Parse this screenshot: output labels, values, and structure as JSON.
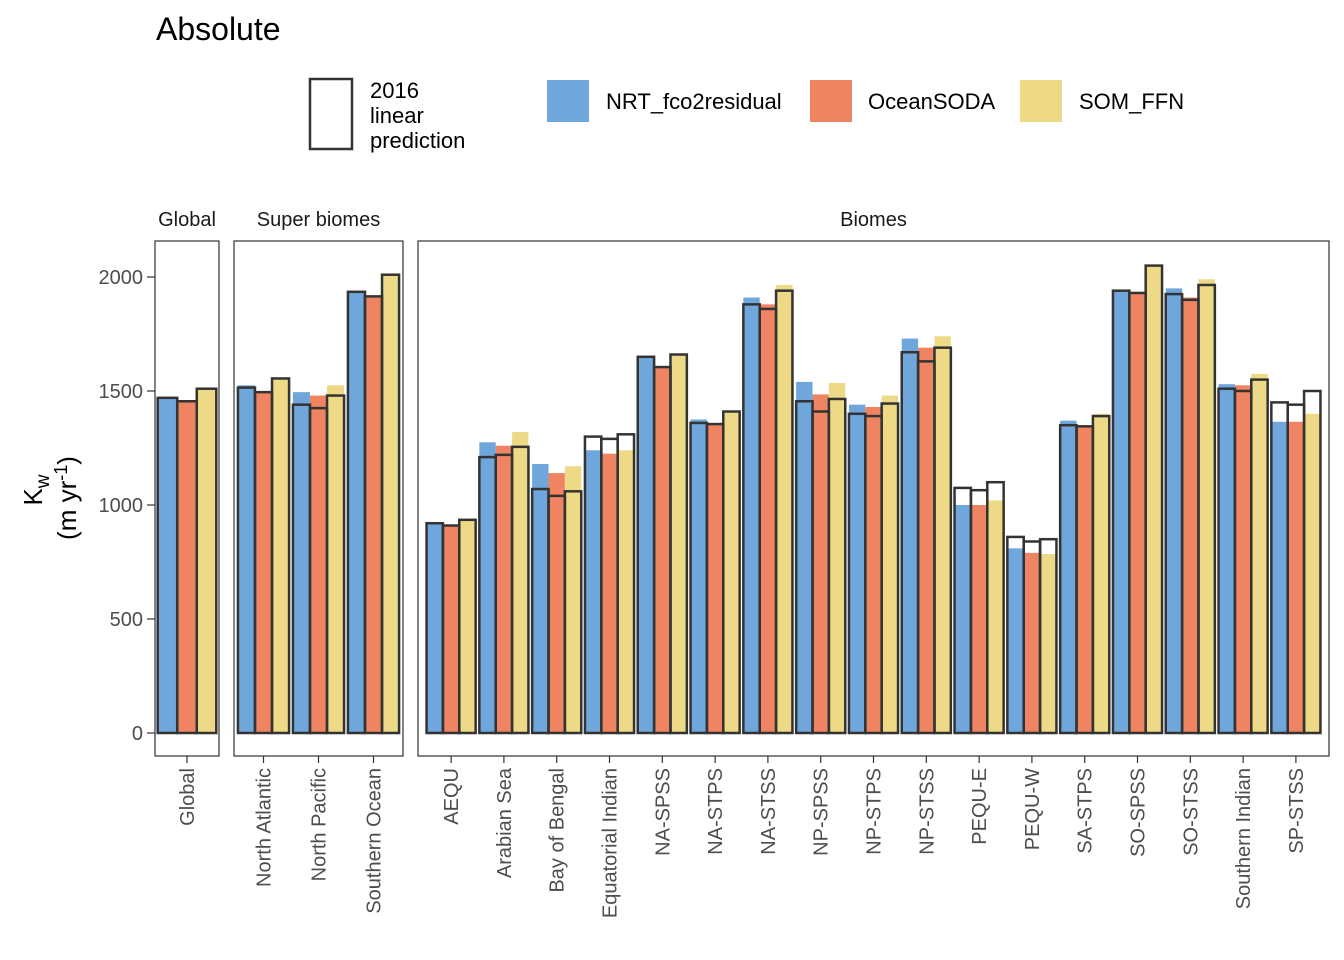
{
  "chart_data": {
    "type": "bar",
    "title": "Absolute",
    "ylabel": {
      "main": "K",
      "sub": "w",
      "unit_pre": "(m yr",
      "unit_sup": "-1",
      "unit_post": ")"
    },
    "ylim": [
      0,
      2100
    ],
    "yticks": [
      0,
      500,
      1000,
      1500,
      2000
    ],
    "grid": false,
    "legend": {
      "position": "top",
      "outline_label": [
        "2016",
        "linear",
        "prediction"
      ],
      "series_names": [
        "NRT_fco2residual",
        "OceanSODA",
        "SOM_FFN"
      ]
    },
    "colors": {
      "NRT_fco2residual": "#6FA6DC",
      "OceanSODA": "#EE8461",
      "SOM_FFN": "#EEDA86",
      "outline": "#333333"
    },
    "series_order": [
      "NRT_fco2residual",
      "OceanSODA",
      "SOM_FFN"
    ],
    "panels": [
      {
        "name": "Global",
        "categories": [
          {
            "label": "Global",
            "bars": [
              1475,
              1455,
              1510
            ],
            "outline": [
              1470,
              1455,
              1510
            ]
          }
        ]
      },
      {
        "name": "Super biomes",
        "categories": [
          {
            "label": "North Atlantic",
            "bars": [
              1525,
              1500,
              1555
            ],
            "outline": [
              1515,
              1495,
              1555
            ]
          },
          {
            "label": "North Pacific",
            "bars": [
              1495,
              1480,
              1525
            ],
            "outline": [
              1440,
              1425,
              1480
            ]
          },
          {
            "label": "Southern Ocean",
            "bars": [
              1935,
              1915,
              2010
            ],
            "outline": [
              1935,
              1915,
              2010
            ]
          }
        ]
      },
      {
        "name": "Biomes",
        "categories": [
          {
            "label": "AEQU",
            "bars": [
              920,
              910,
              935
            ],
            "outline": [
              920,
              910,
              935
            ]
          },
          {
            "label": "Arabian Sea",
            "bars": [
              1275,
              1260,
              1320
            ],
            "outline": [
              1210,
              1220,
              1255
            ]
          },
          {
            "label": "Bay of Bengal",
            "bars": [
              1180,
              1140,
              1170
            ],
            "outline": [
              1070,
              1040,
              1060
            ]
          },
          {
            "label": "Equatorial Indian",
            "bars": [
              1240,
              1225,
              1240
            ],
            "outline": [
              1300,
              1290,
              1310
            ]
          },
          {
            "label": "NA-SPSS",
            "bars": [
              1650,
              1605,
              1660
            ],
            "outline": [
              1650,
              1605,
              1660
            ]
          },
          {
            "label": "NA-STPS",
            "bars": [
              1375,
              1355,
              1410
            ],
            "outline": [
              1360,
              1355,
              1410
            ]
          },
          {
            "label": "NA-STSS",
            "bars": [
              1910,
              1880,
              1965
            ],
            "outline": [
              1880,
              1860,
              1940
            ]
          },
          {
            "label": "NP-SPSS",
            "bars": [
              1540,
              1485,
              1535
            ],
            "outline": [
              1455,
              1410,
              1465
            ]
          },
          {
            "label": "NP-STPS",
            "bars": [
              1440,
              1430,
              1480
            ],
            "outline": [
              1400,
              1390,
              1445
            ]
          },
          {
            "label": "NP-STSS",
            "bars": [
              1730,
              1690,
              1740
            ],
            "outline": [
              1670,
              1630,
              1690
            ]
          },
          {
            "label": "PEQU-E",
            "bars": [
              1000,
              1000,
              1020
            ],
            "outline": [
              1075,
              1065,
              1100
            ]
          },
          {
            "label": "PEQU-W",
            "bars": [
              810,
              790,
              785
            ],
            "outline": [
              860,
              840,
              850
            ]
          },
          {
            "label": "SA-STPS",
            "bars": [
              1370,
              1345,
              1400
            ],
            "outline": [
              1350,
              1345,
              1390
            ]
          },
          {
            "label": "SO-SPSS",
            "bars": [
              1945,
              1930,
              2050
            ],
            "outline": [
              1940,
              1930,
              2050
            ]
          },
          {
            "label": "SO-STSS",
            "bars": [
              1950,
              1910,
              1990
            ],
            "outline": [
              1925,
              1900,
              1965
            ]
          },
          {
            "label": "Southern Indian",
            "bars": [
              1530,
              1525,
              1575
            ],
            "outline": [
              1510,
              1500,
              1550
            ]
          },
          {
            "label": "SP-STSS",
            "bars": [
              1365,
              1365,
              1400
            ],
            "outline": [
              1450,
              1440,
              1500
            ]
          }
        ]
      }
    ]
  }
}
